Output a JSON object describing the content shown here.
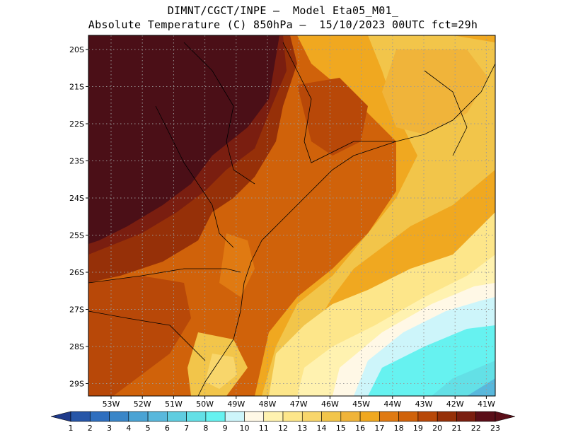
{
  "title": {
    "line1": "DIMNT/CGCT/INPE –  Model Eta05_M01_",
    "line2": "Absolute Temperature (C) 850hPa –  15/10/2023 00UTC fct=29h"
  },
  "map": {
    "lat_labels": [
      "20S",
      "21S",
      "22S",
      "23S",
      "24S",
      "25S",
      "26S",
      "27S",
      "28S",
      "29S"
    ],
    "lon_labels": [
      "53W",
      "52W",
      "51W",
      "50W",
      "49W",
      "48W",
      "47W",
      "46W",
      "45W",
      "44W",
      "43W",
      "42W",
      "41W"
    ],
    "gridlines": true
  },
  "colorbar": {
    "labels": [
      "1",
      "2",
      "3",
      "4",
      "5",
      "6",
      "7",
      "8",
      "9",
      "10",
      "11",
      "12",
      "13",
      "14",
      "15",
      "16",
      "17",
      "18",
      "19",
      "20",
      "21",
      "22",
      "23"
    ],
    "colors": [
      "#1e3a8a",
      "#2756a8",
      "#2f6fbf",
      "#3a86c8",
      "#4aa3d4",
      "#59b8dc",
      "#5fcde0",
      "#63e0e6",
      "#66f2f0",
      "#cdf5fa",
      "#fff8e6",
      "#fff2b0",
      "#fde68a",
      "#f8d66b",
      "#f2c54a",
      "#f0b43a",
      "#f0a820",
      "#e07a12",
      "#d0620a",
      "#b84808",
      "#963008",
      "#7a1e10",
      "#5a0e18"
    ]
  }
}
